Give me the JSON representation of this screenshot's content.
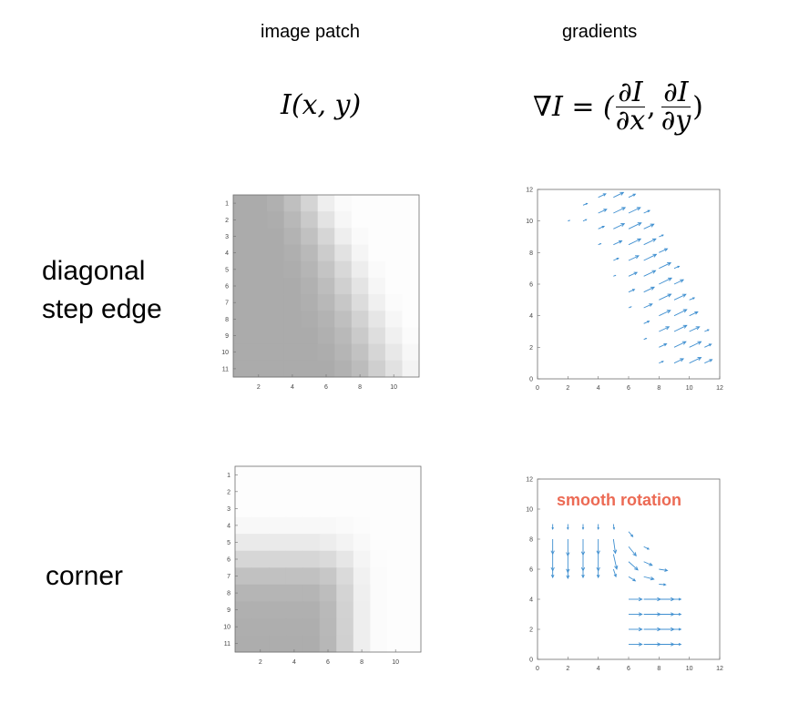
{
  "columns": {
    "image_patch": "image patch",
    "gradients": "gradients"
  },
  "formulas": {
    "patch": {
      "func": "I",
      "args": "(x, y)"
    },
    "gradient": {
      "nabla": "∇I = (",
      "num": "∂I",
      "den_x": "∂x",
      "sep": ",",
      "den_y": "∂y",
      "close": ")"
    }
  },
  "rows": [
    {
      "label_line1": "diagonal",
      "label_line2": "step edge"
    },
    {
      "label_line1": "corner",
      "label_line2": ""
    }
  ],
  "annotation": {
    "text": "smooth rotation",
    "color": "#ec6a54"
  },
  "colors": {
    "arrow": "#3f8fd0",
    "axes": "#6e6e6e",
    "annotation": "#ec6a54"
  },
  "chart_data": [
    {
      "type": "heatmap",
      "name": "diagonal step edge image patch",
      "x_ticks": [
        2,
        4,
        6,
        8,
        10
      ],
      "y_ticks": [
        1,
        2,
        3,
        4,
        5,
        6,
        7,
        8,
        9,
        10,
        11
      ],
      "xlim": [
        0.5,
        11.5
      ],
      "ylim": [
        0.5,
        11.5
      ],
      "values": [
        [
          0.2,
          0.2,
          0.25,
          0.4,
          0.6,
          0.85,
          0.97,
          1,
          1,
          1,
          1
        ],
        [
          0.2,
          0.2,
          0.22,
          0.33,
          0.5,
          0.75,
          0.93,
          1,
          1,
          1,
          1
        ],
        [
          0.2,
          0.2,
          0.2,
          0.28,
          0.42,
          0.62,
          0.85,
          0.97,
          1,
          1,
          1
        ],
        [
          0.2,
          0.2,
          0.2,
          0.24,
          0.34,
          0.52,
          0.74,
          0.92,
          1,
          1,
          1
        ],
        [
          0.2,
          0.2,
          0.2,
          0.22,
          0.3,
          0.45,
          0.64,
          0.84,
          0.97,
          1,
          1
        ],
        [
          0.2,
          0.2,
          0.2,
          0.2,
          0.26,
          0.38,
          0.56,
          0.76,
          0.93,
          1,
          1
        ],
        [
          0.2,
          0.2,
          0.2,
          0.2,
          0.24,
          0.33,
          0.48,
          0.68,
          0.87,
          0.98,
          1
        ],
        [
          0.2,
          0.2,
          0.2,
          0.2,
          0.22,
          0.28,
          0.4,
          0.58,
          0.78,
          0.93,
          1
        ],
        [
          0.2,
          0.2,
          0.2,
          0.2,
          0.2,
          0.25,
          0.34,
          0.5,
          0.7,
          0.87,
          0.98
        ],
        [
          0.2,
          0.2,
          0.2,
          0.2,
          0.2,
          0.22,
          0.3,
          0.43,
          0.62,
          0.8,
          0.94
        ],
        [
          0.2,
          0.2,
          0.2,
          0.2,
          0.2,
          0.2,
          0.26,
          0.37,
          0.55,
          0.73,
          0.9
        ]
      ]
    },
    {
      "type": "scatter",
      "name": "diagonal step edge gradients",
      "x_ticks": [
        0,
        2,
        4,
        6,
        8,
        10,
        12
      ],
      "y_ticks": [
        0,
        2,
        4,
        6,
        8,
        10,
        12
      ],
      "xlim": [
        0,
        12
      ],
      "ylim": [
        0,
        12
      ],
      "arrows": [
        [
          2.0,
          10.0,
          0.1,
          0.03
        ],
        [
          3.0,
          11.0,
          0.25,
          0.1
        ],
        [
          3.0,
          10.0,
          0.2,
          0.08
        ],
        [
          4.0,
          11.5,
          0.45,
          0.2
        ],
        [
          4.0,
          10.5,
          0.5,
          0.22
        ],
        [
          4.0,
          9.5,
          0.35,
          0.15
        ],
        [
          4.0,
          8.5,
          0.15,
          0.06
        ],
        [
          5.0,
          11.5,
          0.6,
          0.28
        ],
        [
          5.0,
          10.5,
          0.7,
          0.32
        ],
        [
          5.0,
          9.5,
          0.65,
          0.3
        ],
        [
          5.0,
          8.5,
          0.5,
          0.22
        ],
        [
          5.0,
          7.5,
          0.3,
          0.13
        ],
        [
          5.0,
          6.5,
          0.12,
          0.05
        ],
        [
          6.0,
          11.5,
          0.4,
          0.18
        ],
        [
          6.0,
          10.5,
          0.7,
          0.32
        ],
        [
          6.0,
          9.5,
          0.75,
          0.35
        ],
        [
          6.0,
          8.5,
          0.72,
          0.33
        ],
        [
          6.0,
          7.5,
          0.6,
          0.27
        ],
        [
          6.0,
          6.5,
          0.5,
          0.22
        ],
        [
          6.0,
          5.5,
          0.35,
          0.15
        ],
        [
          6.0,
          4.5,
          0.15,
          0.06
        ],
        [
          7.0,
          10.5,
          0.35,
          0.15
        ],
        [
          7.0,
          9.5,
          0.6,
          0.27
        ],
        [
          7.0,
          8.5,
          0.72,
          0.33
        ],
        [
          7.0,
          7.5,
          0.75,
          0.35
        ],
        [
          7.0,
          6.5,
          0.7,
          0.32
        ],
        [
          7.0,
          5.5,
          0.62,
          0.28
        ],
        [
          7.0,
          4.5,
          0.5,
          0.22
        ],
        [
          7.0,
          3.5,
          0.32,
          0.14
        ],
        [
          7.0,
          2.5,
          0.15,
          0.06
        ],
        [
          8.0,
          9.0,
          0.25,
          0.1
        ],
        [
          8.0,
          8.0,
          0.5,
          0.22
        ],
        [
          8.0,
          7.0,
          0.7,
          0.32
        ],
        [
          8.0,
          6.0,
          0.75,
          0.35
        ],
        [
          8.0,
          5.0,
          0.72,
          0.33
        ],
        [
          8.0,
          4.0,
          0.68,
          0.31
        ],
        [
          8.0,
          3.0,
          0.6,
          0.27
        ],
        [
          8.0,
          2.0,
          0.45,
          0.2
        ],
        [
          8.0,
          1.0,
          0.25,
          0.1
        ],
        [
          9.0,
          7.0,
          0.3,
          0.12
        ],
        [
          9.0,
          6.0,
          0.55,
          0.25
        ],
        [
          9.0,
          5.0,
          0.7,
          0.32
        ],
        [
          9.0,
          4.0,
          0.75,
          0.35
        ],
        [
          9.0,
          3.0,
          0.75,
          0.35
        ],
        [
          9.0,
          2.0,
          0.7,
          0.32
        ],
        [
          9.0,
          1.0,
          0.55,
          0.25
        ],
        [
          10.0,
          5.0,
          0.3,
          0.12
        ],
        [
          10.0,
          4.0,
          0.5,
          0.22
        ],
        [
          10.0,
          3.0,
          0.6,
          0.27
        ],
        [
          10.0,
          2.0,
          0.7,
          0.32
        ],
        [
          10.0,
          1.0,
          0.7,
          0.32
        ],
        [
          11.0,
          3.0,
          0.25,
          0.1
        ],
        [
          11.0,
          2.0,
          0.4,
          0.18
        ],
        [
          11.0,
          1.0,
          0.45,
          0.2
        ]
      ]
    },
    {
      "type": "heatmap",
      "name": "corner image patch",
      "x_ticks": [
        2,
        4,
        6,
        8,
        10
      ],
      "y_ticks": [
        1,
        2,
        3,
        4,
        5,
        6,
        7,
        8,
        9,
        10,
        11
      ],
      "xlim": [
        0.5,
        11.5
      ],
      "ylim": [
        0.5,
        11.5
      ],
      "values": [
        [
          1,
          1,
          1,
          1,
          1,
          1,
          1,
          1,
          1,
          1,
          1
        ],
        [
          1,
          1,
          1,
          1,
          1,
          1,
          1,
          1,
          1,
          1,
          1
        ],
        [
          1,
          1,
          1,
          1,
          1,
          1,
          1,
          1,
          1,
          1,
          1
        ],
        [
          0.95,
          0.95,
          0.95,
          0.95,
          0.95,
          0.95,
          0.97,
          0.99,
          1,
          1,
          1
        ],
        [
          0.82,
          0.82,
          0.82,
          0.82,
          0.82,
          0.84,
          0.9,
          0.96,
          1,
          1,
          1
        ],
        [
          0.62,
          0.62,
          0.62,
          0.62,
          0.62,
          0.66,
          0.78,
          0.92,
          0.99,
          1,
          1
        ],
        [
          0.42,
          0.42,
          0.42,
          0.42,
          0.42,
          0.48,
          0.66,
          0.88,
          0.98,
          1,
          1
        ],
        [
          0.3,
          0.3,
          0.3,
          0.3,
          0.3,
          0.38,
          0.6,
          0.86,
          0.98,
          1,
          1
        ],
        [
          0.25,
          0.25,
          0.25,
          0.25,
          0.25,
          0.34,
          0.58,
          0.85,
          0.98,
          1,
          1
        ],
        [
          0.23,
          0.23,
          0.23,
          0.23,
          0.23,
          0.33,
          0.57,
          0.85,
          0.98,
          1,
          1
        ],
        [
          0.22,
          0.22,
          0.22,
          0.22,
          0.22,
          0.32,
          0.56,
          0.85,
          0.98,
          1,
          1
        ]
      ]
    },
    {
      "type": "scatter",
      "name": "corner gradients",
      "x_ticks": [
        0,
        2,
        4,
        6,
        8,
        10,
        12
      ],
      "y_ticks": [
        0,
        2,
        4,
        6,
        8,
        10,
        12
      ],
      "xlim": [
        0,
        12
      ],
      "ylim": [
        0,
        12
      ],
      "arrows": [
        [
          1.0,
          9.0,
          0,
          -0.3
        ],
        [
          1.0,
          8.0,
          0,
          -0.9
        ],
        [
          1.0,
          7.0,
          0,
          -1.0
        ],
        [
          1.0,
          6.0,
          0,
          -0.5
        ],
        [
          2.0,
          9.0,
          0,
          -0.3
        ],
        [
          2.0,
          8.0,
          0,
          -1.0
        ],
        [
          2.0,
          7.0,
          0,
          -1.1
        ],
        [
          2.0,
          6.0,
          0,
          -0.55
        ],
        [
          3.0,
          9.0,
          0,
          -0.3
        ],
        [
          3.0,
          8.0,
          0,
          -0.95
        ],
        [
          3.0,
          7.0,
          0,
          -1.0
        ],
        [
          3.0,
          6.0,
          0,
          -0.5
        ],
        [
          4.0,
          9.0,
          0,
          -0.3
        ],
        [
          4.0,
          8.0,
          0,
          -0.9
        ],
        [
          4.0,
          7.0,
          0,
          -1.0
        ],
        [
          4.0,
          6.0,
          0,
          -0.5
        ],
        [
          5.0,
          9.0,
          0.04,
          -0.3
        ],
        [
          5.0,
          8.0,
          0.12,
          -0.85
        ],
        [
          5.0,
          7.0,
          0.2,
          -0.9
        ],
        [
          5.0,
          6.0,
          0.15,
          -0.45
        ],
        [
          6.0,
          8.5,
          0.25,
          -0.3
        ],
        [
          6.0,
          7.5,
          0.45,
          -0.55
        ],
        [
          6.0,
          6.5,
          0.55,
          -0.5
        ],
        [
          6.0,
          5.5,
          0.4,
          -0.25
        ],
        [
          7.0,
          7.5,
          0.3,
          -0.15
        ],
        [
          7.0,
          6.5,
          0.5,
          -0.22
        ],
        [
          7.0,
          5.5,
          0.6,
          -0.15
        ],
        [
          8.0,
          6.0,
          0.5,
          -0.08
        ],
        [
          8.0,
          5.0,
          0.4,
          -0.03
        ],
        [
          6.0,
          4.0,
          0.8,
          0
        ],
        [
          7.0,
          4.0,
          1.0,
          0
        ],
        [
          8.0,
          4.0,
          0.9,
          0
        ],
        [
          9.0,
          4.0,
          0.4,
          0
        ],
        [
          6.0,
          3.0,
          0.8,
          0
        ],
        [
          7.0,
          3.0,
          1.0,
          0
        ],
        [
          8.0,
          3.0,
          0.9,
          0
        ],
        [
          9.0,
          3.0,
          0.4,
          0
        ],
        [
          6.0,
          2.0,
          0.8,
          0
        ],
        [
          7.0,
          2.0,
          1.0,
          0
        ],
        [
          8.0,
          2.0,
          0.9,
          0
        ],
        [
          9.0,
          2.0,
          0.4,
          0
        ],
        [
          6.0,
          1.0,
          0.8,
          0
        ],
        [
          7.0,
          1.0,
          1.0,
          0
        ],
        [
          8.0,
          1.0,
          0.9,
          0
        ],
        [
          9.0,
          1.0,
          0.4,
          0
        ]
      ]
    }
  ]
}
